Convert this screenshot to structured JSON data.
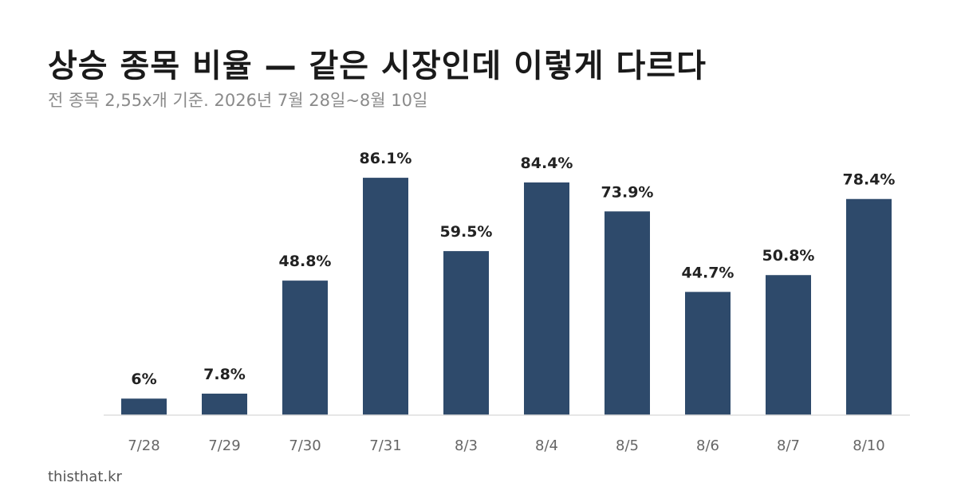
{
  "title": "상승 종목 비율 — 같은 시장인데 이렇게 다르다",
  "subtitle": "전 종목 2,55x개 기준. 2026년 7월 28일~8월 10일",
  "footer": "thisthat.kr",
  "colors": {
    "bar": "#2e4a6b",
    "baseline": "#dddddd"
  },
  "chart_data": {
    "type": "bar",
    "categories": [
      "7/28",
      "7/29",
      "7/30",
      "7/31",
      "8/3",
      "8/4",
      "8/5",
      "8/6",
      "8/7",
      "8/10"
    ],
    "values": [
      6,
      7.8,
      48.8,
      86.1,
      59.5,
      84.4,
      73.9,
      44.7,
      50.8,
      78.4
    ],
    "data_labels": [
      "6%",
      "7.8%",
      "48.8%",
      "86.1%",
      "59.5%",
      "84.4%",
      "73.9%",
      "44.7%",
      "50.8%",
      "78.4%"
    ],
    "ylim": [
      0,
      100
    ],
    "grid": false,
    "legend": false
  }
}
